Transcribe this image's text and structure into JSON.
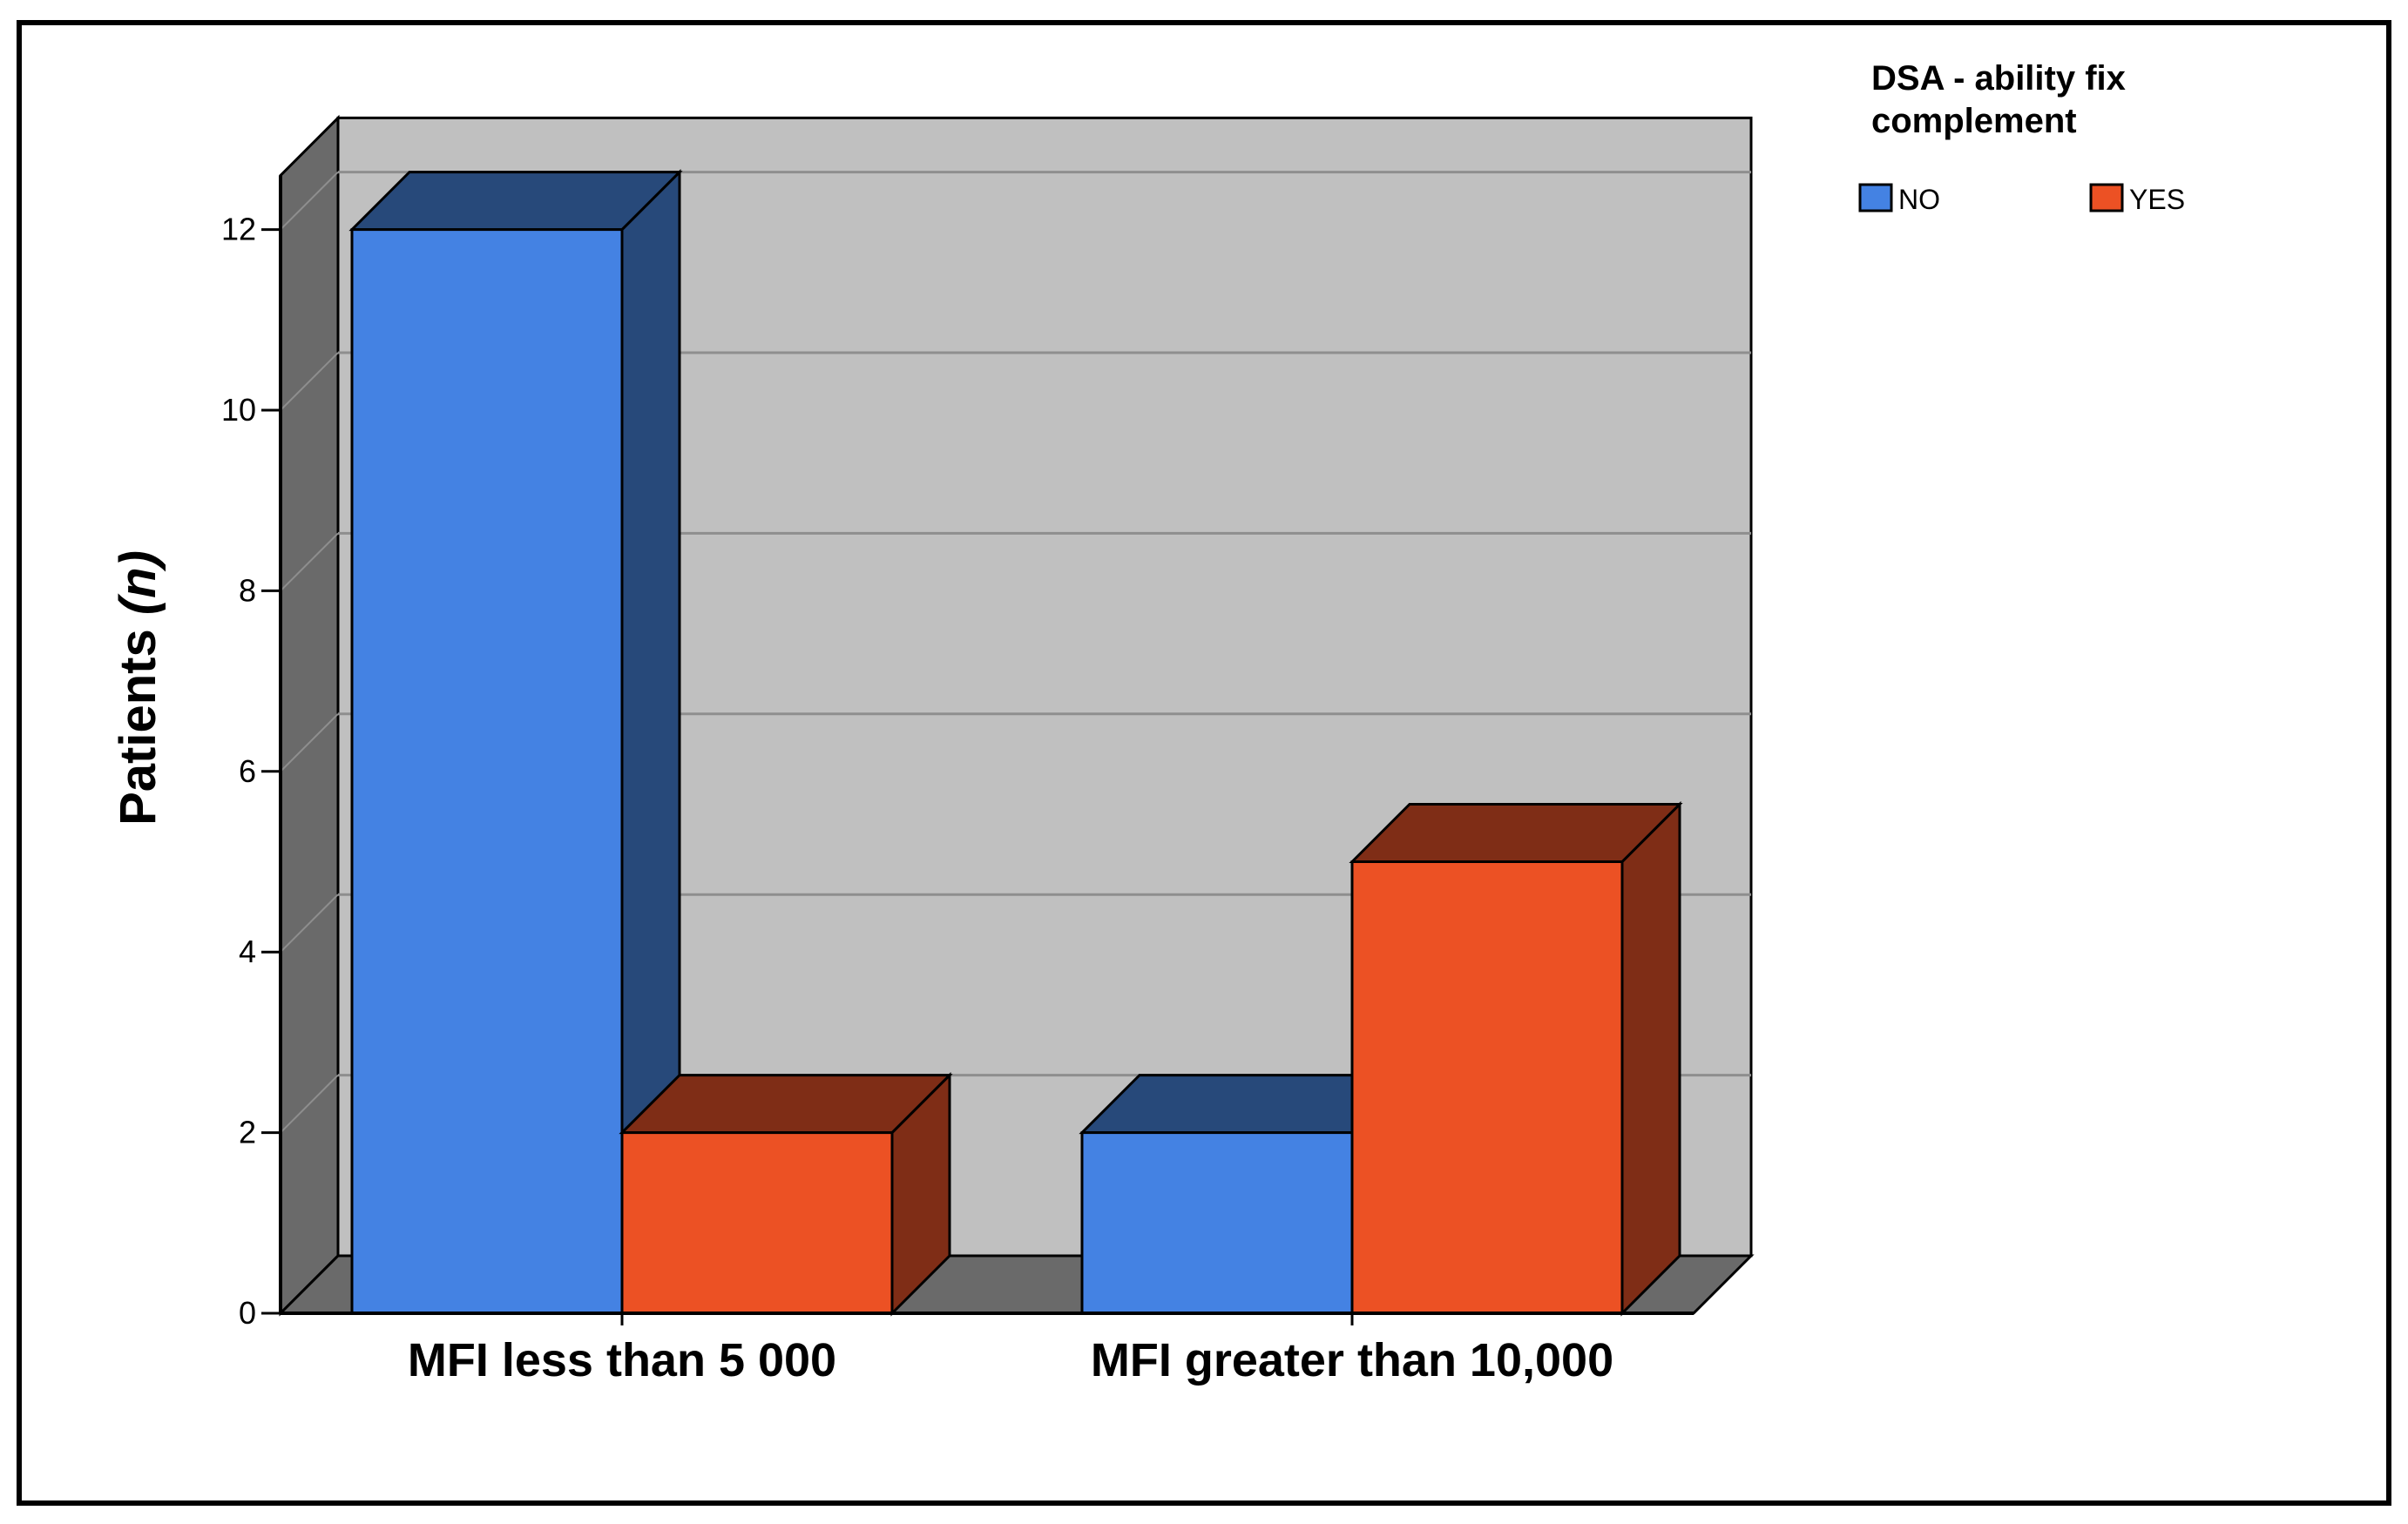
{
  "chart_data": {
    "type": "bar",
    "style": "3d-clustered",
    "title": "",
    "xlabel": "",
    "ylabel": "Patients",
    "ylabel_italic": "(n)",
    "categories": [
      "MFI less than 5 000",
      "MFI greater than 10,000"
    ],
    "series": [
      {
        "name": "NO",
        "values": [
          12,
          2
        ]
      },
      {
        "name": "YES",
        "values": [
          2,
          5
        ]
      }
    ],
    "ylim": [
      0,
      12
    ],
    "yticks": [
      0,
      2,
      4,
      6,
      8,
      10,
      12
    ],
    "grid": true,
    "legend": {
      "title_line1": "DSA - ability fix",
      "title_line2": "complement",
      "placement": "top-right"
    }
  },
  "colors": {
    "series_front": [
      "#4482e3",
      "#ec5124"
    ],
    "series_side": [
      "#27497a",
      "#7f2d16"
    ],
    "series_top": [
      "#27497a",
      "#7f2d16"
    ],
    "back_wall": "#c0c0c0",
    "side_wall": "#6a6a6a",
    "floor": "#6a6a6a",
    "gridline": "#8e8e8e",
    "frame": "#000000"
  }
}
